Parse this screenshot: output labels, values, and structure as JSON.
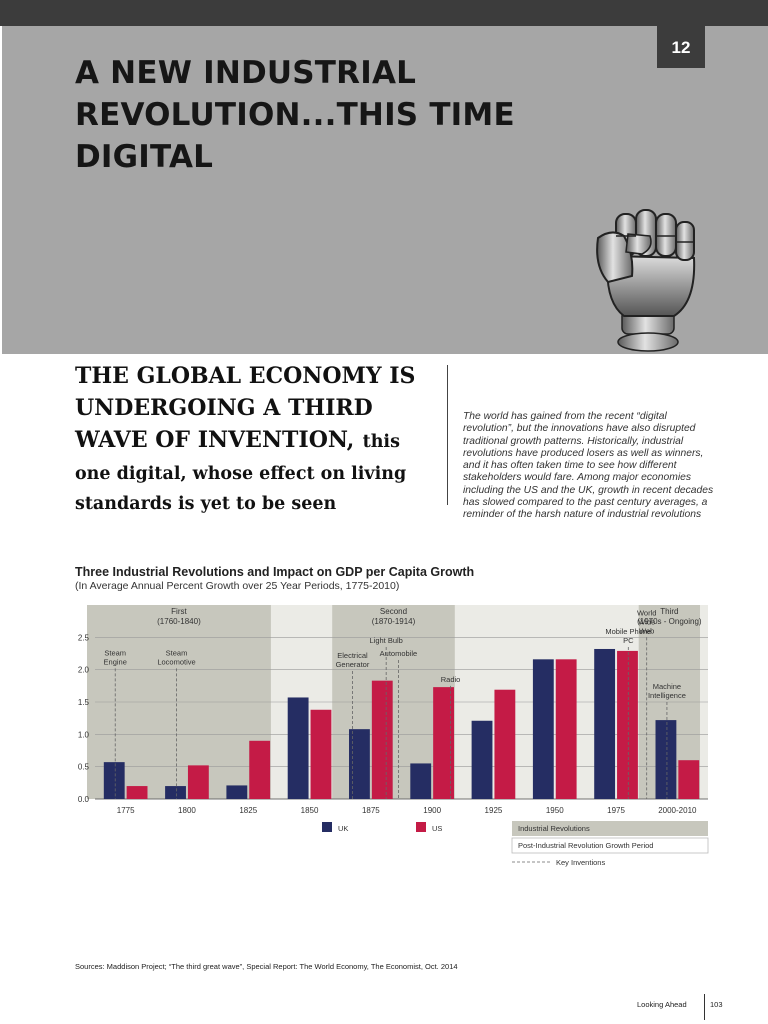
{
  "page": {
    "tab_number": "12",
    "title": "A NEW INDUSTRIAL REVOLUTION...THIS TIME DIGITAL",
    "subheading_bold": "THE GLOBAL ECONOMY IS UNDERGOING A THIRD WAVE OF INVENTION,",
    "subheading_rest": "this one digital, whose effect on living standards is yet to be seen",
    "quote": "The world has gained from the recent “digital revolution”, but the innovations have also disrupted traditional growth patterns. Historically, industrial revolutions have produced losers as well as winners, and it has often taken time to see how different stakeholders would fare. Among major economies including the US and the UK, growth in recent decades has slowed compared to the past century averages, a reminder of the harsh nature of industrial revolutions",
    "sources": "Sources: Maddison Project; “The third great wave”, Special Report: The World Economy, The Economist, Oct. 2014",
    "footer_label": "Looking Ahead",
    "footer_page": "103"
  },
  "colors": {
    "uk": "#252d63",
    "us": "#c41b46",
    "revolution_band": "#c7c7bd",
    "dark_bar": "#3c3c3c",
    "hero_gray": "#a6a6a6"
  },
  "chart_data": {
    "type": "bar",
    "title": "Three Industrial Revolutions and Impact on GDP per Capita Growth",
    "subtitle": "(In Average Annual Percent Growth over 25 Year Periods, 1775-2010)",
    "categories": [
      "1775",
      "1800",
      "1825",
      "1850",
      "1875",
      "1900",
      "1925",
      "1950",
      "1975",
      "2000-2010"
    ],
    "series": [
      {
        "name": "UK",
        "values": [
          0.57,
          0.2,
          0.21,
          1.57,
          1.08,
          0.55,
          1.21,
          2.16,
          2.32,
          1.22
        ]
      },
      {
        "name": "US",
        "values": [
          0.2,
          0.52,
          0.9,
          1.38,
          1.83,
          1.73,
          1.69,
          2.16,
          2.29,
          0.6
        ]
      }
    ],
    "ylim": [
      0,
      3.0
    ],
    "yticks": [
      "0.0",
      "0.5",
      "1.0",
      "1.5",
      "2.0",
      "2.5"
    ],
    "grid": true,
    "revolutions": [
      {
        "label": "First",
        "period": "(1760-1840)",
        "start_category": 0,
        "end_category": 2
      },
      {
        "label": "Second",
        "period": "(1870-1914)",
        "start_category": 4,
        "end_category": 5
      },
      {
        "label": "Third",
        "period": "(1970s - Ongoing)",
        "start_category": 9,
        "end_category": 9
      }
    ],
    "inventions": [
      {
        "label": "Steam\nEngine",
        "category": 0,
        "line_from": 2.02
      },
      {
        "label": "Steam\nLocomotive",
        "category": 1,
        "line_from": 2.02
      },
      {
        "label": "Electrical\nGenerator",
        "category": 3.7,
        "line_from": 1.98
      },
      {
        "label": "Light Bulb",
        "category": 4.25,
        "line_from": 2.35
      },
      {
        "label": "Automobile",
        "category": 4.45,
        "line_from": 2.15
      },
      {
        "label": "Radio",
        "category": 5.3,
        "line_from": 1.75
      },
      {
        "label": "Mobile Phone\nPC",
        "category": 8.2,
        "line_from": 2.35
      },
      {
        "label": "World\nWide\nWeb",
        "category": 8.5,
        "line_from": 2.5
      },
      {
        "label": "Machine\nIntelligence",
        "category": 9.0,
        "line_from": 1.5
      }
    ],
    "legend": {
      "series": [
        "UK",
        "US"
      ],
      "band_label": "Industrial Revolutions",
      "period_label": "Post-Industrial Revolution Growth Period",
      "line_label": "Key Inventions",
      "placement": "bottom"
    }
  }
}
